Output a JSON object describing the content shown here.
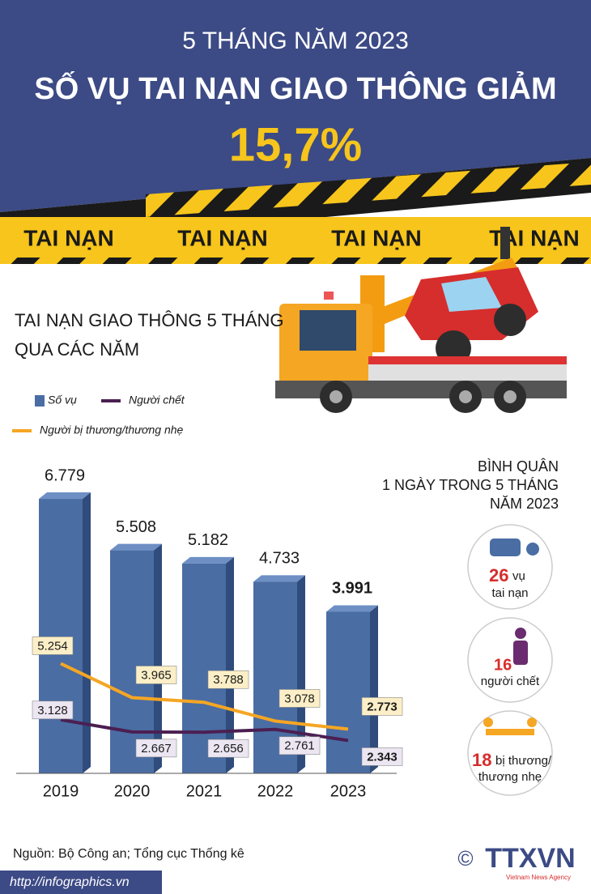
{
  "header": {
    "kicker": "5 THÁNG NĂM 2023",
    "title": "SỐ VỤ TAI NẠN GIAO THÔNG GIẢM",
    "highlight": "15,7%"
  },
  "tape": [
    "TAI NẠN",
    "TAI NẠN",
    "TAI NẠN",
    "TAI NẠN"
  ],
  "chart_data": {
    "type": "bar",
    "title": [
      "TAI NẠN GIAO THÔNG 5 THÁNG",
      "QUA CÁC NĂM"
    ],
    "categories": [
      "2019",
      "2020",
      "2021",
      "2022",
      "2023"
    ],
    "ylim": [
      0,
      7900
    ],
    "y2lim": [
      1100,
      13200
    ],
    "series": [
      {
        "name": "Số vụ",
        "type": "bar",
        "color": "#4a6da3",
        "values": [
          6779,
          5508,
          5182,
          4733,
          3991
        ],
        "value_labels": [
          "6.779",
          "5.508",
          "5.182",
          "4.733",
          "3.991"
        ]
      },
      {
        "name": "Người chết",
        "type": "line",
        "axis": "y2",
        "color": "#4b1f52",
        "values": [
          3128,
          2667,
          2656,
          2761,
          2343
        ],
        "value_labels": [
          "3.128",
          "2.667",
          "2.656",
          "2.761",
          "2.343"
        ]
      },
      {
        "name": "Người bị thương/thương nhẹ",
        "type": "line",
        "axis": "y2",
        "color": "#f5a623",
        "values": [
          5254,
          3965,
          3788,
          3078,
          2773
        ],
        "value_labels": [
          "5.254",
          "3.965",
          "3.788",
          "3.078",
          "2.773"
        ]
      }
    ]
  },
  "daily": {
    "title": [
      "BÌNH QUÂN",
      "1 NGÀY TRONG 5 THÁNG",
      "NĂM 2023"
    ],
    "items": [
      {
        "value": 26,
        "unit": "vụ",
        "label": "tai nạn"
      },
      {
        "value": 16,
        "label": "người chết"
      },
      {
        "value": 18,
        "unit": "bị thương/",
        "label": "thương nhẹ"
      }
    ]
  },
  "footer": {
    "source": "Nguồn: Bộ Công an; Tổng cục Thống kê",
    "url": "http://infographics.vn",
    "copyright": "©",
    "logo": "TTXVN",
    "logo_sub": "Vietnam News Agency"
  }
}
